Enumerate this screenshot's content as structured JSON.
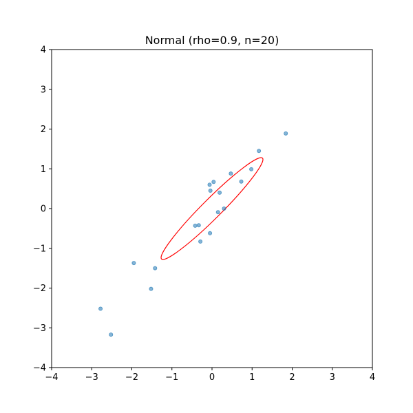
{
  "chart_data": {
    "type": "scatter",
    "title": "Normal (rho=0.9, n=20)",
    "xlabel": "",
    "ylabel": "",
    "xlim": [
      -4,
      4
    ],
    "ylim": [
      -4,
      4
    ],
    "xticks": [
      -4,
      -3,
      -2,
      -1,
      0,
      1,
      2,
      3,
      4
    ],
    "yticks": [
      -4,
      -3,
      -2,
      -1,
      0,
      1,
      2,
      3,
      4
    ],
    "tick_labels_x": [
      "−4",
      "−3",
      "−2",
      "−1",
      "0",
      "1",
      "2",
      "3",
      "4"
    ],
    "tick_labels_y": [
      "−4",
      "−3",
      "−2",
      "−1",
      "0",
      "1",
      "2",
      "3",
      "4"
    ],
    "grid": false,
    "point_color": "#1f77b4",
    "ellipse_color": "#ff0000",
    "points": [
      {
        "x": 1.84,
        "y": 1.89
      },
      {
        "x": 1.17,
        "y": 1.45
      },
      {
        "x": 0.98,
        "y": 0.99
      },
      {
        "x": 0.47,
        "y": 0.88
      },
      {
        "x": 0.73,
        "y": 0.68
      },
      {
        "x": 0.04,
        "y": 0.67
      },
      {
        "x": -0.06,
        "y": 0.6
      },
      {
        "x": -0.04,
        "y": 0.45
      },
      {
        "x": 0.19,
        "y": 0.4
      },
      {
        "x": 0.3,
        "y": 0.0
      },
      {
        "x": 0.15,
        "y": -0.09
      },
      {
        "x": -0.33,
        "y": -0.42
      },
      {
        "x": -0.42,
        "y": -0.43
      },
      {
        "x": -0.05,
        "y": -0.62
      },
      {
        "x": -0.29,
        "y": -0.83
      },
      {
        "x": -1.95,
        "y": -1.37
      },
      {
        "x": -1.42,
        "y": -1.5
      },
      {
        "x": -1.52,
        "y": -2.02
      },
      {
        "x": -2.78,
        "y": -2.52
      },
      {
        "x": -2.52,
        "y": -3.17
      }
    ],
    "ellipse": {
      "center": [
        0.0,
        0.0
      ],
      "angle_deg": 45,
      "semi_major": 1.78,
      "semi_minor": 0.24
    }
  }
}
